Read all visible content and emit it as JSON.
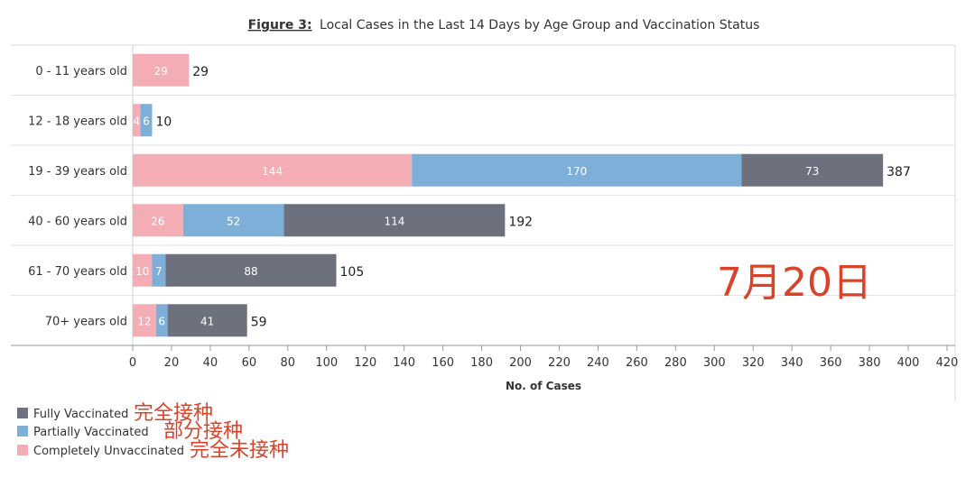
{
  "chart_data": {
    "type": "bar",
    "orientation": "horizontal",
    "stacked": true,
    "title_prefix": "Figure 3:",
    "title": "Local Cases in the Last 14 Days by Age Group and Vaccination Status",
    "xlabel": "No. of Cases",
    "ylabel": "",
    "xlim": [
      0,
      420
    ],
    "xticks": [
      0,
      20,
      40,
      60,
      80,
      100,
      120,
      140,
      160,
      180,
      200,
      220,
      240,
      260,
      280,
      300,
      320,
      340,
      360,
      380,
      400,
      420
    ],
    "categories": [
      "0 - 11 years old",
      "12 - 18 years old",
      "19 - 39 years old",
      "40 - 60 years old",
      "61 - 70 years old",
      "70+ years old"
    ],
    "series": [
      {
        "name": "Completely Unvaccinated",
        "color": "#f4adb5",
        "values": [
          29,
          4,
          144,
          26,
          10,
          12
        ]
      },
      {
        "name": "Partially Vaccinated",
        "color": "#7eafd8",
        "values": [
          0,
          6,
          170,
          52,
          7,
          6
        ]
      },
      {
        "name": "Fully Vaccinated",
        "color": "#6d717e",
        "values": [
          0,
          0,
          73,
          114,
          88,
          41
        ]
      }
    ],
    "totals": [
      29,
      10,
      387,
      192,
      105,
      59
    ],
    "legend": [
      {
        "name": "Fully Vaccinated",
        "color": "#6d717e",
        "annotation": "完全接种"
      },
      {
        "name": "Partially Vaccinated",
        "color": "#7eafd8",
        "annotation": "部分接种"
      },
      {
        "name": "Completely Unvaccinated",
        "color": "#f4adb5",
        "annotation": "完全未接种"
      }
    ],
    "legend_position": "bottom-left",
    "annotation_date": "7月20日"
  }
}
